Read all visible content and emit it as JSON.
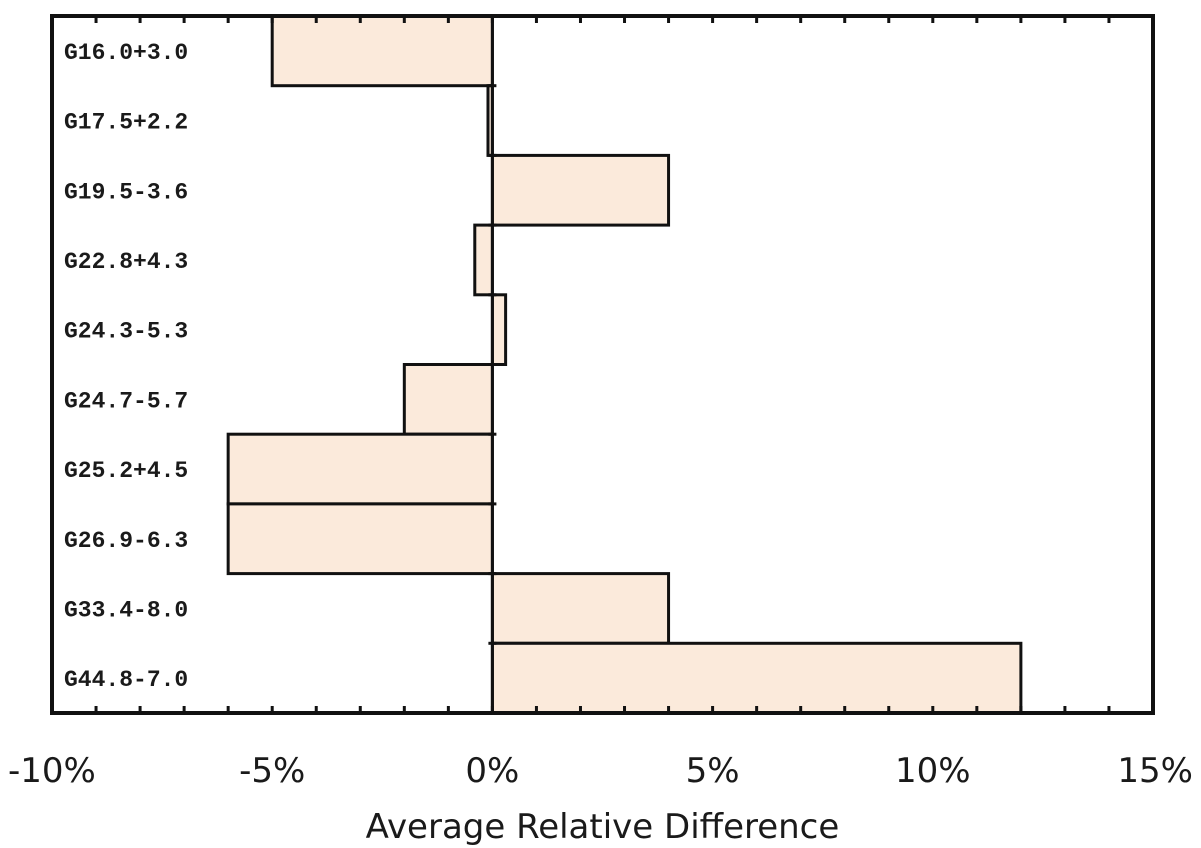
{
  "chart_data": {
    "type": "bar",
    "orientation": "horizontal",
    "categories": [
      "G16.0+3.0",
      "G17.5+2.2",
      "G19.5-3.6",
      "G22.8+4.3",
      "G24.3-5.3",
      "G24.7-5.7",
      "G25.2+4.5",
      "G26.9-6.3",
      "G33.4-8.0",
      "G44.8-7.0"
    ],
    "values": [
      -5.0,
      -0.1,
      4.0,
      -0.4,
      0.3,
      -2.0,
      -6.0,
      -6.0,
      4.0,
      12.0
    ],
    "xlabel": "Average Relative Difference",
    "xlim": [
      -10,
      15
    ],
    "x_ticks": [
      -10,
      -5,
      0,
      5,
      10,
      15
    ],
    "x_tick_labels": [
      "-10%",
      "-5%",
      "0%",
      "5%",
      "10%",
      "15%"
    ],
    "grid": false,
    "colors": {
      "bar_fill": "#fbeadb",
      "bar_edge": "#111111"
    }
  }
}
